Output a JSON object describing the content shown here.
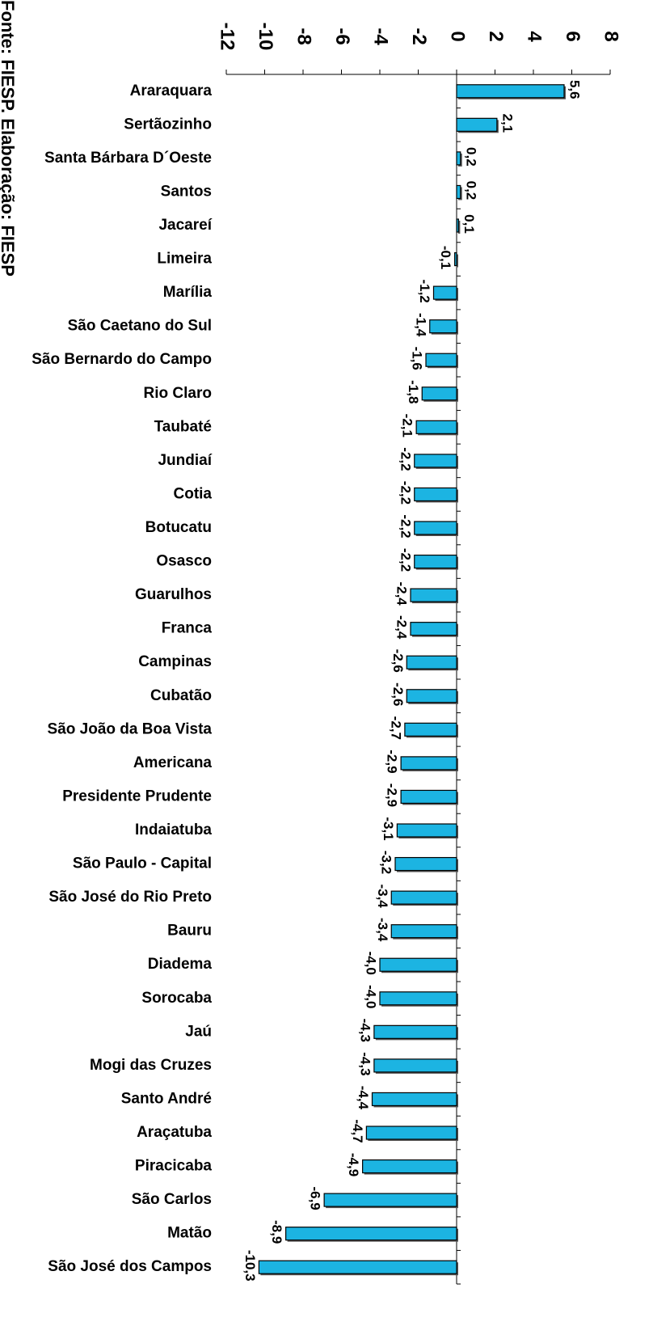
{
  "chart_data": {
    "type": "hbar",
    "source": "Fonte: FIESP. Elaboração: FIESP",
    "categories": [
      "Araraquara",
      "Sertãozinho",
      "Santa Bárbara D´Oeste",
      "Santos",
      "Jacareí",
      "Limeira",
      "Marília",
      "São Caetano do Sul",
      "São Bernardo do Campo",
      "Rio Claro",
      "Taubaté",
      "Jundiaí",
      "Cotia",
      "Botucatu",
      "Osasco",
      "Guarulhos",
      "Franca",
      "Campinas",
      "Cubatão",
      "São João da Boa Vista",
      "Americana",
      "Presidente Prudente",
      "Indaiatuba",
      "São Paulo - Capital",
      "São José do Rio Preto",
      "Bauru",
      "Diadema",
      "Sorocaba",
      "Jaú",
      "Mogi das Cruzes",
      "Santo André",
      "Araçatuba",
      "Piracicaba",
      "São Carlos",
      "Matão",
      "São José dos Campos"
    ],
    "values": [
      5.6,
      2.1,
      0.2,
      0.2,
      0.1,
      -0.1,
      -1.2,
      -1.4,
      -1.6,
      -1.8,
      -2.1,
      -2.2,
      -2.2,
      -2.2,
      -2.2,
      -2.4,
      -2.4,
      -2.6,
      -2.6,
      -2.7,
      -2.9,
      -2.9,
      -3.1,
      -3.2,
      -3.4,
      -3.4,
      -4.0,
      -4.0,
      -4.3,
      -4.3,
      -4.4,
      -4.7,
      -4.9,
      -6.9,
      -8.9,
      -10.3
    ],
    "value_labels": [
      "5,6",
      "2,1",
      "0,2",
      "0,2",
      "0,1",
      "-0,1",
      "-1,2",
      "-1,4",
      "-1,6",
      "-1,8",
      "-2,1",
      "-2,2",
      "-2,2",
      "-2,2",
      "-2,2",
      "-2,4",
      "-2,4",
      "-2,6",
      "-2,6",
      "-2,7",
      "-2,9",
      "-2,9",
      "-3,1",
      "-3,2",
      "-3,4",
      "-3,4",
      "-4,0",
      "-4,0",
      "-4,3",
      "-4,3",
      "-4,4",
      "-4,7",
      "-4,9",
      "-6,9",
      "-8,9",
      "-10,3"
    ],
    "color": "#1cb4e2",
    "xlim": [
      -12,
      8
    ],
    "xticks": [
      -12,
      -10,
      -8,
      -6,
      -4,
      -2,
      0,
      2,
      4,
      6,
      8
    ]
  }
}
